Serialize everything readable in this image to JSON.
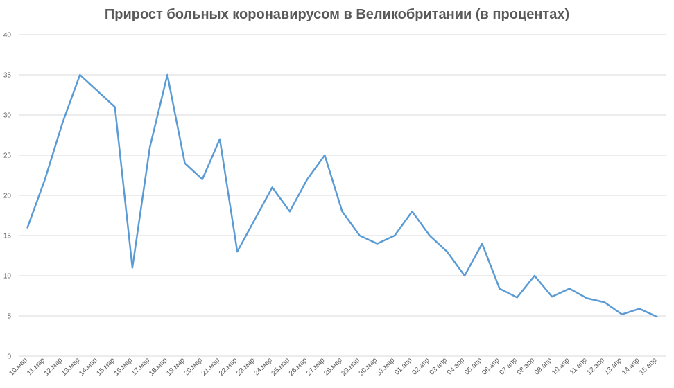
{
  "chart_data": {
    "type": "line",
    "title": "Прирост больных коронавирусом в Великобритании (в процентах)",
    "xlabel": "",
    "ylabel": "",
    "ylim": [
      0,
      40
    ],
    "yticks": [
      0,
      5,
      10,
      15,
      20,
      25,
      30,
      35,
      40
    ],
    "grid": true,
    "legend": "none",
    "colors": {
      "line": "#5b9bd5",
      "grid": "#d9d9d9",
      "text": "#595959"
    },
    "categories": [
      "10.мар",
      "11.мар",
      "12.мар",
      "13.мар",
      "14.мар",
      "15.мар",
      "16.мар",
      "17.мар",
      "18.мар",
      "19.мар",
      "20.мар",
      "21.мар",
      "22.мар",
      "23.мар",
      "24.мар",
      "25.мар",
      "26.мар",
      "27.мар",
      "28.мар",
      "29.мар",
      "30.мар",
      "31.мар",
      "01.апр",
      "02.апр",
      "03.апр",
      "04.апр",
      "05.апр",
      "06.апр",
      "07.апр",
      "08.апр",
      "09.апр",
      "10.апр",
      "11.апр",
      "12.апр",
      "13.апр",
      "14.апр",
      "15.апр"
    ],
    "series": [
      {
        "values": [
          16,
          22,
          29,
          35,
          33,
          31,
          11,
          26,
          35,
          24,
          22,
          27,
          13,
          17,
          21,
          18,
          22,
          25,
          18,
          15,
          14,
          15,
          18,
          15,
          13,
          10,
          14,
          8.4,
          7.3,
          10,
          7.4,
          8.4,
          7.2,
          6.7,
          5.2,
          5.9,
          4.9
        ]
      }
    ]
  }
}
